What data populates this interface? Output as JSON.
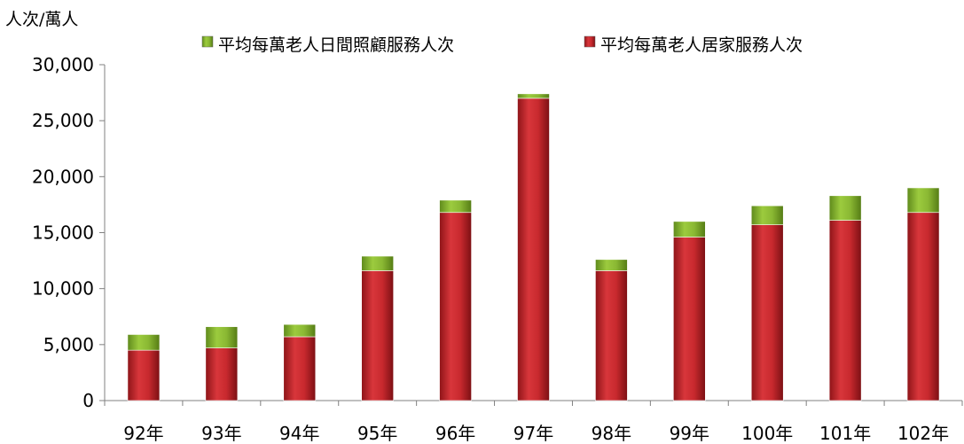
{
  "chart_data": {
    "type": "bar",
    "stacked": true,
    "y_unit": "人次/萬人",
    "categories": [
      "92年",
      "93年",
      "94年",
      "95年",
      "96年",
      "97年",
      "98年",
      "99年",
      "100年",
      "101年",
      "102年"
    ],
    "series": [
      {
        "name": "平均每萬老人居家服務人次",
        "color": "#c0272d",
        "values": [
          4500,
          4700,
          5700,
          11600,
          16800,
          27000,
          11600,
          14600,
          15700,
          16100,
          16800
        ]
      },
      {
        "name": "平均每萬老人日間照顧服務人次",
        "color": "#8ab833",
        "values": [
          1400,
          1900,
          1100,
          1300,
          1100,
          400,
          1000,
          1400,
          1700,
          2200,
          2200
        ]
      }
    ],
    "legend_order": [
      1,
      0
    ],
    "ylim": [
      0,
      30000
    ],
    "y_ticks": [
      "0",
      "5,000",
      "10,000",
      "15,000",
      "20,000",
      "25,000",
      "30,000"
    ],
    "y_tick_values": [
      0,
      5000,
      10000,
      15000,
      20000,
      25000,
      30000
    ],
    "grid": false,
    "legend_position": "top"
  }
}
